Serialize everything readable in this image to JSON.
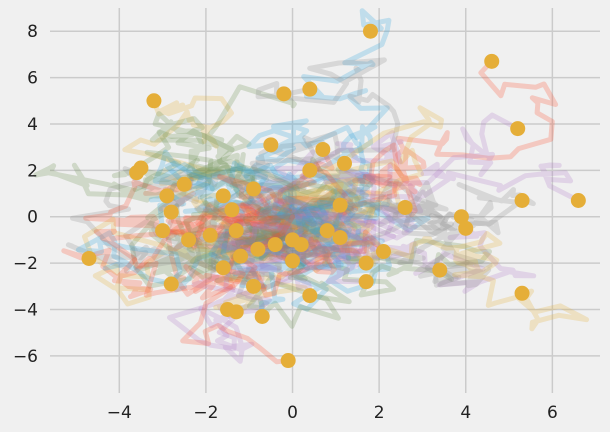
{
  "chart_data": {
    "type": "scatter",
    "style": "fivethirtyeight",
    "title": "",
    "xlabel": "",
    "ylabel": "",
    "xlim": [
      -5.6,
      7.1
    ],
    "ylim": [
      -7.6,
      9.0
    ],
    "grid": true,
    "background_color": "#f0f0f0",
    "grid_color": "#cbcbcb",
    "x_ticks": [
      -4,
      -2,
      0,
      2,
      4,
      6
    ],
    "x_tick_labels": [
      "−4",
      "−2",
      "0",
      "2",
      "4",
      "6"
    ],
    "y_ticks": [
      -6,
      -4,
      -2,
      0,
      2,
      4,
      6,
      8
    ],
    "y_tick_labels": [
      "−6",
      "−4",
      "−2",
      "0",
      "2",
      "4",
      "6",
      "8"
    ],
    "endpoint_color": "#e5ae38",
    "walk_colors": [
      "#30a2da",
      "#fc4f30",
      "#e5ae38",
      "#6d904f",
      "#8b8b8b",
      "#b07cc6"
    ],
    "walk_count": 50,
    "walk_steps": 50,
    "walk_opacity": 0.25,
    "endpoints": [
      {
        "x": 1.8,
        "y": 8.0
      },
      {
        "x": 4.6,
        "y": 6.7
      },
      {
        "x": -3.2,
        "y": 5.0
      },
      {
        "x": -0.2,
        "y": 5.3
      },
      {
        "x": 0.4,
        "y": 5.5
      },
      {
        "x": 5.2,
        "y": 3.8
      },
      {
        "x": -0.5,
        "y": 3.1
      },
      {
        "x": 0.7,
        "y": 2.9
      },
      {
        "x": 1.2,
        "y": 2.3
      },
      {
        "x": -3.5,
        "y": 2.1
      },
      {
        "x": -3.6,
        "y": 1.9
      },
      {
        "x": 0.4,
        "y": 2.0
      },
      {
        "x": -2.5,
        "y": 1.4
      },
      {
        "x": -2.9,
        "y": 0.9
      },
      {
        "x": -1.6,
        "y": 0.9
      },
      {
        "x": -0.9,
        "y": 1.2
      },
      {
        "x": 5.3,
        "y": 0.7
      },
      {
        "x": 6.6,
        "y": 0.7
      },
      {
        "x": 1.1,
        "y": 0.5
      },
      {
        "x": 2.6,
        "y": 0.4
      },
      {
        "x": -1.4,
        "y": 0.3
      },
      {
        "x": -2.8,
        "y": 0.2
      },
      {
        "x": 3.9,
        "y": 0.0
      },
      {
        "x": 4.0,
        "y": -0.5
      },
      {
        "x": -3.0,
        "y": -0.6
      },
      {
        "x": -1.3,
        "y": -0.6
      },
      {
        "x": 0.8,
        "y": -0.6
      },
      {
        "x": -2.4,
        "y": -1.0
      },
      {
        "x": -1.9,
        "y": -0.8
      },
      {
        "x": 0.0,
        "y": -1.0
      },
      {
        "x": 1.1,
        "y": -0.9
      },
      {
        "x": 0.2,
        "y": -1.2
      },
      {
        "x": -0.4,
        "y": -1.2
      },
      {
        "x": -0.8,
        "y": -1.4
      },
      {
        "x": 2.1,
        "y": -1.5
      },
      {
        "x": -1.2,
        "y": -1.7
      },
      {
        "x": 0.0,
        "y": -1.9
      },
      {
        "x": -4.7,
        "y": -1.8
      },
      {
        "x": 1.7,
        "y": -2.0
      },
      {
        "x": -1.6,
        "y": -2.2
      },
      {
        "x": 3.4,
        "y": -2.3
      },
      {
        "x": 1.7,
        "y": -2.8
      },
      {
        "x": -2.8,
        "y": -2.9
      },
      {
        "x": -0.9,
        "y": -3.0
      },
      {
        "x": 5.3,
        "y": -3.3
      },
      {
        "x": 0.4,
        "y": -3.4
      },
      {
        "x": -1.5,
        "y": -4.0
      },
      {
        "x": -1.3,
        "y": -4.1
      },
      {
        "x": -0.7,
        "y": -4.3
      },
      {
        "x": -0.1,
        "y": -6.2
      }
    ]
  }
}
